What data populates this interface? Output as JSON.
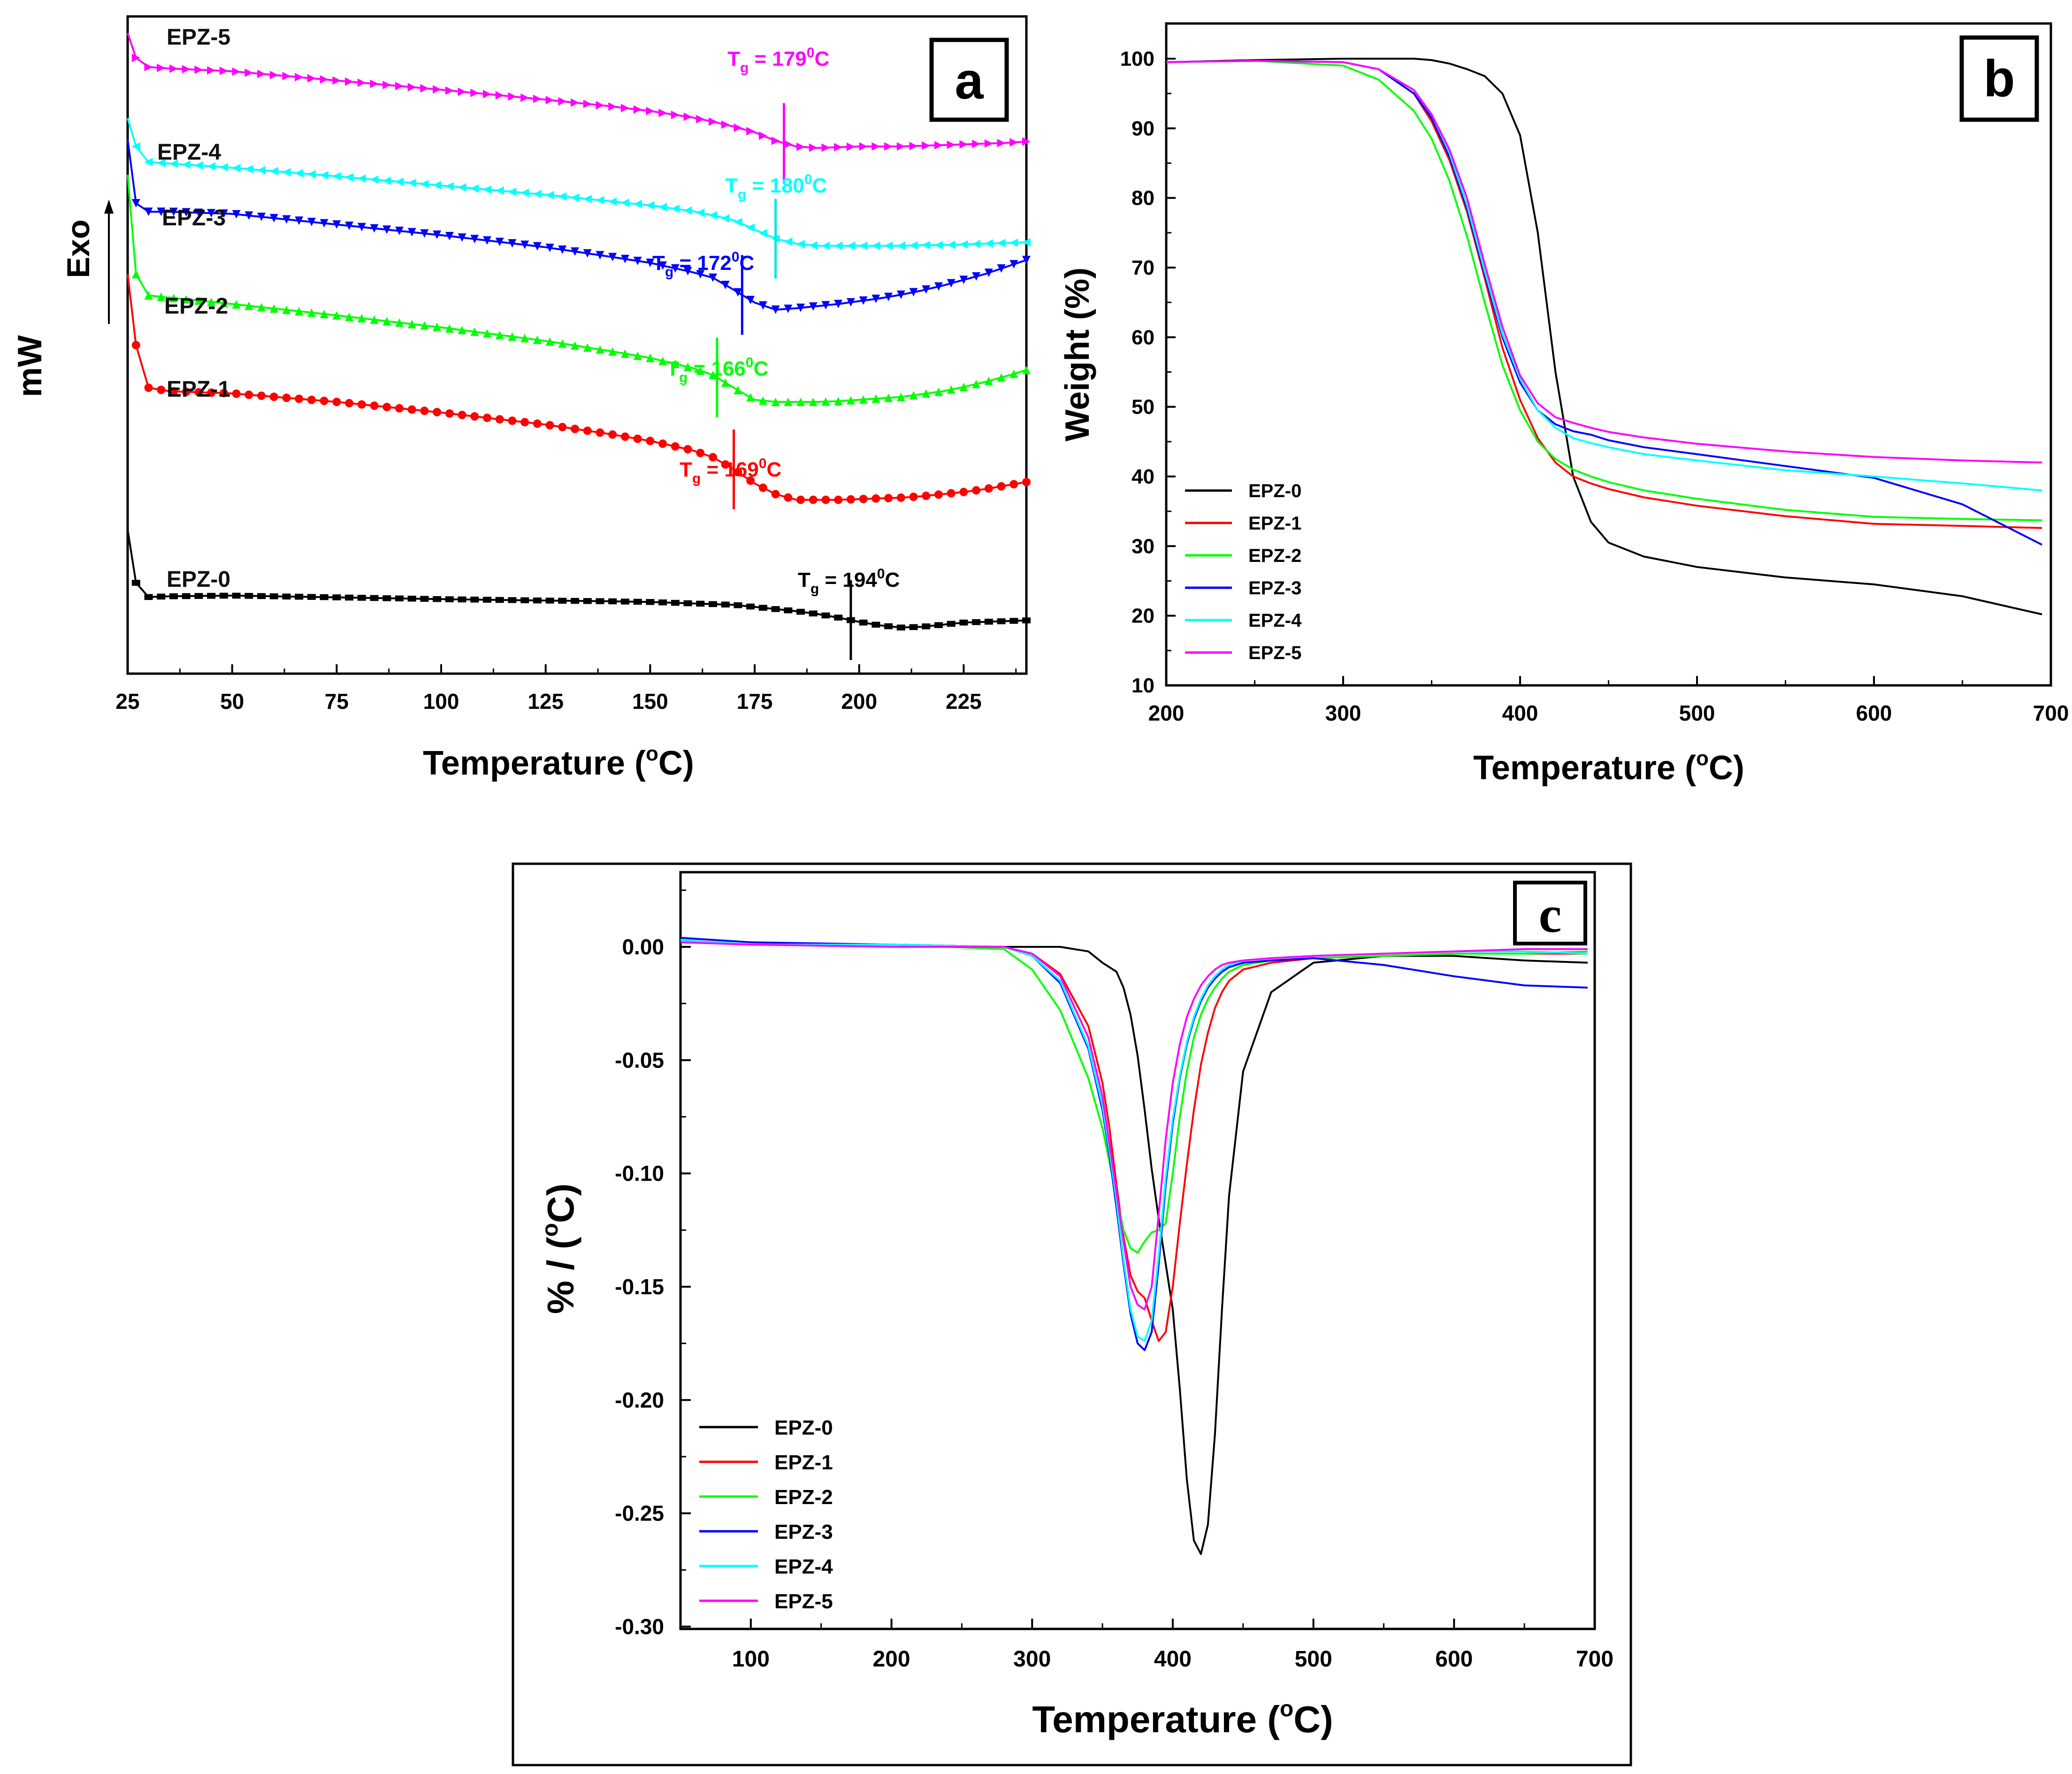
{
  "chart_data": [
    {
      "panel": "a",
      "type": "line",
      "title": "",
      "xlabel": "Temperature (",
      "xlabel_sup": "o",
      "xlabel_end": "C)",
      "ylabel": "mW",
      "ylabel_arrow": "Exo",
      "xlim": [
        25,
        240
      ],
      "xticks": [
        25,
        50,
        75,
        100,
        125,
        150,
        175,
        200,
        225
      ],
      "x": [
        25,
        27,
        30,
        35,
        50,
        75,
        100,
        125,
        140,
        150,
        160,
        165,
        170,
        175,
        180,
        185,
        190,
        195,
        200,
        205,
        210,
        215,
        220,
        225,
        230,
        235,
        240
      ],
      "series": [
        {
          "name": "EPZ-0",
          "label": "EPZ-0",
          "color": "#000000",
          "marker": "square",
          "values": [
            1.3,
            0.55,
            0.35,
            0.36,
            0.37,
            0.345,
            0.32,
            0.3,
            0.29,
            0.28,
            0.26,
            0.25,
            0.24,
            0.21,
            0.18,
            0.15,
            0.11,
            0.06,
            0.0,
            -0.05,
            -0.08,
            -0.07,
            -0.04,
            -0.01,
            0.0,
            0.01,
            0.02
          ],
          "tg_label": "T",
          "tg_sub": "g",
          "tg_value": " = 194",
          "tg_sup": "0",
          "tg_unit": "C",
          "tg_x": 198
        },
        {
          "name": "EPZ-1",
          "label": "EPZ-1",
          "color": "#ff0000",
          "marker": "circle",
          "values": [
            4.9,
            3.9,
            3.3,
            3.25,
            3.22,
            3.1,
            2.95,
            2.78,
            2.65,
            2.55,
            2.42,
            2.32,
            2.15,
            1.95,
            1.8,
            1.72,
            1.72,
            1.72,
            1.73,
            1.74,
            1.75,
            1.77,
            1.8,
            1.83,
            1.87,
            1.92,
            1.97
          ],
          "tg_label": "T",
          "tg_sub": "g",
          "tg_value": " = 169",
          "tg_sup": "0",
          "tg_unit": "C",
          "tg_x": 170
        },
        {
          "name": "EPZ-2",
          "label": "EPZ-2",
          "color": "#00ff00",
          "marker": "triangle-up",
          "values": [
            6.3,
            4.9,
            4.6,
            4.57,
            4.48,
            4.32,
            4.15,
            3.96,
            3.82,
            3.72,
            3.58,
            3.48,
            3.3,
            3.13,
            3.1,
            3.1,
            3.1,
            3.11,
            3.13,
            3.15,
            3.17,
            3.21,
            3.25,
            3.31,
            3.38,
            3.46,
            3.55
          ],
          "tg_label": "T",
          "tg_sub": "g",
          "tg_value": " = 166",
          "tg_sup": "0",
          "tg_unit": "C",
          "tg_x": 166
        },
        {
          "name": "EPZ-3",
          "label": "EPZ-3",
          "color": "#0000ff",
          "marker": "triangle-down",
          "values": [
            6.8,
            5.9,
            5.78,
            5.78,
            5.75,
            5.6,
            5.45,
            5.28,
            5.15,
            5.06,
            4.93,
            4.85,
            4.68,
            4.5,
            4.4,
            4.42,
            4.45,
            4.48,
            4.52,
            4.56,
            4.61,
            4.67,
            4.74,
            4.82,
            4.9,
            5.0,
            5.1
          ],
          "tg_label": "T",
          "tg_sub": "g",
          "tg_value": " = 172",
          "tg_sup": "0",
          "tg_unit": "C",
          "tg_x": 172
        },
        {
          "name": "EPZ-4",
          "label": "EPZ-4",
          "color": "#00ffff",
          "marker": "triangle-left",
          "values": [
            7.1,
            6.7,
            6.48,
            6.46,
            6.4,
            6.28,
            6.15,
            6.02,
            5.93,
            5.87,
            5.79,
            5.73,
            5.66,
            5.53,
            5.4,
            5.33,
            5.3,
            5.3,
            5.3,
            5.3,
            5.3,
            5.31,
            5.31,
            5.32,
            5.33,
            5.34,
            5.35
          ],
          "tg_label": "T",
          "tg_sub": "g",
          "tg_value": " = 180",
          "tg_sup": "0",
          "tg_unit": "C",
          "tg_x": 180
        },
        {
          "name": "EPZ-5",
          "label": "EPZ-5",
          "color": "#ff00ff",
          "marker": "triangle-right",
          "values": [
            8.3,
            7.95,
            7.82,
            7.8,
            7.76,
            7.63,
            7.5,
            7.36,
            7.27,
            7.2,
            7.11,
            7.05,
            6.98,
            6.9,
            6.78,
            6.7,
            6.68,
            6.69,
            6.7,
            6.7,
            6.7,
            6.71,
            6.72,
            6.73,
            6.74,
            6.75,
            6.77
          ],
          "tg_label": "T",
          "tg_sub": "g",
          "tg_value": " = 179",
          "tg_sup": "0",
          "tg_unit": "C",
          "tg_x": 182
        }
      ]
    },
    {
      "panel": "b",
      "type": "line",
      "title": "",
      "xlabel": "Temperature (",
      "xlabel_sup": "o",
      "xlabel_end": "C)",
      "ylabel": "Weight (%)",
      "xlim": [
        200,
        700
      ],
      "ylim": [
        10,
        105
      ],
      "xticks": [
        200,
        300,
        400,
        500,
        600,
        700
      ],
      "yticks": [
        10,
        20,
        30,
        40,
        50,
        60,
        70,
        80,
        90,
        100
      ],
      "legend_position": "bottom-left",
      "x": [
        200,
        250,
        300,
        320,
        340,
        350,
        360,
        370,
        380,
        390,
        400,
        410,
        420,
        430,
        440,
        450,
        470,
        500,
        550,
        600,
        650,
        695
      ],
      "series": [
        {
          "name": "EPZ-0",
          "color": "#000000",
          "values": [
            99.5,
            99.8,
            100.0,
            100.0,
            100.0,
            99.8,
            99.3,
            98.5,
            97.5,
            95.0,
            89.0,
            75.0,
            55.0,
            40.0,
            33.5,
            30.5,
            28.5,
            27.0,
            25.5,
            24.5,
            22.8,
            20.2
          ]
        },
        {
          "name": "EPZ-1",
          "color": "#ff0000",
          "values": [
            99.5,
            99.7,
            99.5,
            98.5,
            95.0,
            91.0,
            85.5,
            78.0,
            68.5,
            58.5,
            51.0,
            45.5,
            42.0,
            40.0,
            39.0,
            38.2,
            37.0,
            35.8,
            34.3,
            33.2,
            32.9,
            32.6
          ]
        },
        {
          "name": "EPZ-2",
          "color": "#00ff00",
          "values": [
            99.5,
            99.7,
            99.0,
            97.0,
            92.5,
            88.5,
            82.5,
            74.5,
            65.0,
            56.0,
            49.5,
            45.0,
            42.5,
            41.0,
            40.0,
            39.2,
            38.0,
            36.8,
            35.2,
            34.2,
            33.9,
            33.7
          ]
        },
        {
          "name": "EPZ-3",
          "color": "#0000ff",
          "values": [
            99.5,
            99.7,
            99.5,
            98.5,
            95.0,
            91.5,
            86.0,
            78.5,
            69.0,
            60.0,
            53.5,
            49.5,
            47.5,
            46.5,
            46.0,
            45.2,
            44.2,
            43.2,
            41.5,
            39.8,
            36.0,
            30.2
          ]
        },
        {
          "name": "EPZ-4",
          "color": "#00ffff",
          "values": [
            99.5,
            99.7,
            99.5,
            98.5,
            95.5,
            92.0,
            86.5,
            79.0,
            69.5,
            60.5,
            54.0,
            49.5,
            47.0,
            45.5,
            44.8,
            44.2,
            43.2,
            42.3,
            40.9,
            40.0,
            39.0,
            38.0
          ]
        },
        {
          "name": "EPZ-5",
          "color": "#ff00ff",
          "values": [
            99.5,
            99.7,
            99.5,
            98.5,
            95.5,
            92.0,
            87.0,
            80.0,
            70.5,
            61.5,
            54.5,
            50.5,
            48.5,
            47.7,
            47.0,
            46.4,
            45.6,
            44.7,
            43.6,
            42.8,
            42.3,
            42.0
          ]
        }
      ]
    },
    {
      "panel": "c",
      "type": "line",
      "title": "",
      "xlabel": "Temperature (",
      "xlabel_sup": "o",
      "xlabel_end": "C)",
      "ylabel": "% / (",
      "ylabel_sup": "o",
      "ylabel_end": "C)",
      "xlim": [
        50,
        700
      ],
      "ylim": [
        -0.3,
        0.03
      ],
      "xticks": [
        100,
        200,
        300,
        400,
        500,
        600,
        700
      ],
      "yticks": [
        0.0,
        -0.05,
        -0.1,
        -0.15,
        -0.2,
        -0.25,
        -0.3
      ],
      "ytick_labels": [
        "0.00",
        "-0.05",
        "-0.10",
        "-0.15",
        "-0.20",
        "-0.25",
        "-0.30"
      ],
      "legend_position": "bottom-left",
      "x": [
        50,
        100,
        200,
        280,
        300,
        320,
        340,
        350,
        355,
        360,
        365,
        370,
        375,
        380,
        385,
        390,
        395,
        400,
        405,
        410,
        415,
        420,
        425,
        430,
        435,
        440,
        450,
        470,
        500,
        550,
        600,
        650,
        695
      ],
      "series": [
        {
          "name": "EPZ-0",
          "color": "#000000",
          "values": [
            0.003,
            0.001,
            0.001,
            0.0,
            0.0,
            0.0,
            -0.002,
            -0.007,
            -0.009,
            -0.011,
            -0.018,
            -0.03,
            -0.048,
            -0.072,
            -0.098,
            -0.12,
            -0.14,
            -0.16,
            -0.195,
            -0.235,
            -0.262,
            -0.268,
            -0.255,
            -0.215,
            -0.16,
            -0.11,
            -0.055,
            -0.02,
            -0.007,
            -0.004,
            -0.004,
            -0.006,
            -0.007
          ]
        },
        {
          "name": "EPZ-1",
          "color": "#ff0000",
          "values": [
            0.003,
            0.001,
            0.001,
            0.0,
            -0.003,
            -0.012,
            -0.035,
            -0.06,
            -0.08,
            -0.105,
            -0.128,
            -0.145,
            -0.152,
            -0.155,
            -0.165,
            -0.174,
            -0.17,
            -0.15,
            -0.122,
            -0.096,
            -0.072,
            -0.052,
            -0.038,
            -0.027,
            -0.02,
            -0.015,
            -0.01,
            -0.007,
            -0.005,
            -0.004,
            -0.003,
            -0.003,
            -0.003
          ]
        },
        {
          "name": "EPZ-2",
          "color": "#00ff00",
          "values": [
            0.003,
            0.001,
            0.001,
            -0.001,
            -0.01,
            -0.028,
            -0.058,
            -0.08,
            -0.095,
            -0.11,
            -0.125,
            -0.133,
            -0.135,
            -0.13,
            -0.126,
            -0.125,
            -0.122,
            -0.1,
            -0.075,
            -0.055,
            -0.04,
            -0.03,
            -0.023,
            -0.018,
            -0.014,
            -0.011,
            -0.008,
            -0.006,
            -0.005,
            -0.004,
            -0.003,
            -0.003,
            -0.002
          ]
        },
        {
          "name": "EPZ-3",
          "color": "#0000ff",
          "values": [
            0.004,
            0.002,
            0.001,
            0.0,
            -0.004,
            -0.016,
            -0.045,
            -0.072,
            -0.092,
            -0.115,
            -0.14,
            -0.162,
            -0.175,
            -0.178,
            -0.17,
            -0.14,
            -0.105,
            -0.078,
            -0.058,
            -0.043,
            -0.032,
            -0.024,
            -0.018,
            -0.014,
            -0.011,
            -0.009,
            -0.007,
            -0.006,
            -0.005,
            -0.008,
            -0.013,
            -0.017,
            -0.018
          ]
        },
        {
          "name": "EPZ-4",
          "color": "#00ffff",
          "values": [
            0.003,
            0.001,
            0.001,
            0.0,
            -0.004,
            -0.015,
            -0.044,
            -0.07,
            -0.09,
            -0.112,
            -0.138,
            -0.16,
            -0.172,
            -0.174,
            -0.165,
            -0.136,
            -0.102,
            -0.076,
            -0.057,
            -0.042,
            -0.031,
            -0.023,
            -0.017,
            -0.013,
            -0.01,
            -0.008,
            -0.006,
            -0.005,
            -0.004,
            -0.003,
            -0.002,
            -0.002,
            -0.003
          ]
        },
        {
          "name": "EPZ-5",
          "color": "#ff00ff",
          "values": [
            0.002,
            0.001,
            0.0,
            0.0,
            -0.003,
            -0.013,
            -0.04,
            -0.066,
            -0.087,
            -0.108,
            -0.13,
            -0.15,
            -0.158,
            -0.16,
            -0.15,
            -0.118,
            -0.085,
            -0.06,
            -0.043,
            -0.031,
            -0.023,
            -0.017,
            -0.013,
            -0.01,
            -0.008,
            -0.007,
            -0.006,
            -0.005,
            -0.004,
            -0.003,
            -0.002,
            -0.001,
            -0.001
          ]
        }
      ]
    }
  ],
  "panels": {
    "a": {
      "letter": "a"
    },
    "b": {
      "letter": "b"
    },
    "c": {
      "letter": "c"
    }
  }
}
